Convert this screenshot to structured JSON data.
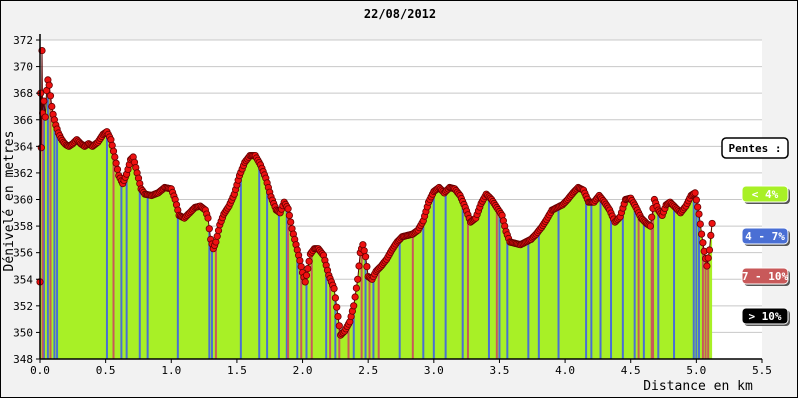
{
  "chart_data": {
    "type": "area",
    "title": "22/08/2012",
    "xlabel": "Distance en km",
    "ylabel": "Dénivelé en metres",
    "xlim": [
      0,
      5.5
    ],
    "ylim": [
      348,
      372
    ],
    "xticks": [
      "0.0",
      "0.5",
      "1.0",
      "1.5",
      "2.0",
      "2.5",
      "3.0",
      "3.5",
      "4.0",
      "4.5",
      "5.0",
      "5.5"
    ],
    "yticks": [
      "348",
      "350",
      "352",
      "354",
      "356",
      "358",
      "360",
      "362",
      "364",
      "366",
      "368",
      "370",
      "372"
    ],
    "grid": "horizontal",
    "series": [
      {
        "points": [
          [
            0.0,
            353.8
          ],
          [
            0.005,
            368.0
          ],
          [
            0.01,
            363.9
          ],
          [
            0.015,
            371.2
          ],
          [
            0.02,
            366.5
          ],
          [
            0.03,
            367.4
          ],
          [
            0.04,
            366.2
          ],
          [
            0.05,
            368.2
          ],
          [
            0.06,
            369.0
          ],
          [
            0.07,
            368.6
          ],
          [
            0.08,
            367.8
          ],
          [
            0.09,
            367.0
          ],
          [
            0.1,
            366.4
          ],
          [
            0.12,
            365.6
          ],
          [
            0.14,
            365.0
          ],
          [
            0.16,
            364.6
          ],
          [
            0.18,
            364.3
          ],
          [
            0.2,
            364.1
          ],
          [
            0.22,
            364.0
          ],
          [
            0.25,
            364.2
          ],
          [
            0.28,
            364.5
          ],
          [
            0.31,
            364.2
          ],
          [
            0.34,
            364.0
          ],
          [
            0.37,
            364.2
          ],
          [
            0.4,
            364.0
          ],
          [
            0.44,
            364.3
          ],
          [
            0.48,
            364.9
          ],
          [
            0.51,
            365.1
          ],
          [
            0.54,
            364.5
          ],
          [
            0.57,
            363.2
          ],
          [
            0.6,
            361.8
          ],
          [
            0.63,
            361.2
          ],
          [
            0.66,
            361.9
          ],
          [
            0.69,
            363.0
          ],
          [
            0.71,
            363.2
          ],
          [
            0.74,
            362.0
          ],
          [
            0.77,
            360.8
          ],
          [
            0.8,
            360.4
          ],
          [
            0.85,
            360.3
          ],
          [
            0.9,
            360.5
          ],
          [
            0.95,
            360.9
          ],
          [
            1.0,
            360.8
          ],
          [
            1.03,
            360.0
          ],
          [
            1.06,
            358.8
          ],
          [
            1.1,
            358.6
          ],
          [
            1.14,
            359.0
          ],
          [
            1.18,
            359.4
          ],
          [
            1.22,
            359.5
          ],
          [
            1.26,
            359.2
          ],
          [
            1.28,
            358.6
          ],
          [
            1.3,
            357.0
          ],
          [
            1.32,
            356.3
          ],
          [
            1.34,
            356.8
          ],
          [
            1.37,
            358.1
          ],
          [
            1.4,
            358.9
          ],
          [
            1.44,
            359.5
          ],
          [
            1.48,
            360.4
          ],
          [
            1.52,
            361.8
          ],
          [
            1.56,
            362.8
          ],
          [
            1.6,
            363.3
          ],
          [
            1.64,
            363.3
          ],
          [
            1.68,
            362.6
          ],
          [
            1.72,
            361.6
          ],
          [
            1.76,
            360.2
          ],
          [
            1.8,
            359.2
          ],
          [
            1.83,
            359.0
          ],
          [
            1.86,
            359.8
          ],
          [
            1.89,
            359.3
          ],
          [
            1.92,
            357.8
          ],
          [
            1.95,
            356.6
          ],
          [
            1.98,
            355.4
          ],
          [
            2.0,
            354.5
          ],
          [
            2.02,
            353.8
          ],
          [
            2.04,
            354.8
          ],
          [
            2.06,
            355.9
          ],
          [
            2.09,
            356.3
          ],
          [
            2.12,
            356.3
          ],
          [
            2.16,
            355.8
          ],
          [
            2.2,
            354.3
          ],
          [
            2.24,
            353.3
          ],
          [
            2.27,
            351.2
          ],
          [
            2.29,
            349.8
          ],
          [
            2.32,
            350.1
          ],
          [
            2.36,
            350.8
          ],
          [
            2.39,
            352.0
          ],
          [
            2.42,
            354.0
          ],
          [
            2.44,
            356.0
          ],
          [
            2.46,
            356.6
          ],
          [
            2.48,
            355.7
          ],
          [
            2.5,
            354.2
          ],
          [
            2.53,
            354.0
          ],
          [
            2.56,
            354.6
          ],
          [
            2.6,
            355.0
          ],
          [
            2.64,
            355.5
          ],
          [
            2.68,
            356.2
          ],
          [
            2.72,
            356.8
          ],
          [
            2.76,
            357.2
          ],
          [
            2.8,
            357.3
          ],
          [
            2.84,
            357.4
          ],
          [
            2.88,
            357.7
          ],
          [
            2.92,
            358.4
          ],
          [
            2.96,
            359.8
          ],
          [
            3.0,
            360.6
          ],
          [
            3.04,
            360.9
          ],
          [
            3.08,
            360.5
          ],
          [
            3.12,
            360.9
          ],
          [
            3.16,
            360.8
          ],
          [
            3.2,
            360.3
          ],
          [
            3.24,
            359.4
          ],
          [
            3.28,
            358.3
          ],
          [
            3.32,
            358.6
          ],
          [
            3.36,
            359.7
          ],
          [
            3.4,
            360.4
          ],
          [
            3.44,
            360.0
          ],
          [
            3.48,
            359.4
          ],
          [
            3.52,
            358.8
          ],
          [
            3.55,
            357.6
          ],
          [
            3.58,
            356.8
          ],
          [
            3.62,
            356.7
          ],
          [
            3.66,
            356.6
          ],
          [
            3.7,
            356.8
          ],
          [
            3.74,
            357.0
          ],
          [
            3.78,
            357.4
          ],
          [
            3.82,
            357.9
          ],
          [
            3.86,
            358.5
          ],
          [
            3.9,
            359.2
          ],
          [
            3.94,
            359.4
          ],
          [
            3.98,
            359.6
          ],
          [
            4.02,
            360.0
          ],
          [
            4.06,
            360.5
          ],
          [
            4.1,
            360.9
          ],
          [
            4.14,
            360.7
          ],
          [
            4.18,
            359.8
          ],
          [
            4.22,
            359.8
          ],
          [
            4.26,
            360.3
          ],
          [
            4.3,
            359.8
          ],
          [
            4.34,
            359.2
          ],
          [
            4.38,
            358.3
          ],
          [
            4.42,
            358.7
          ],
          [
            4.46,
            360.0
          ],
          [
            4.5,
            360.1
          ],
          [
            4.54,
            359.4
          ],
          [
            4.58,
            358.6
          ],
          [
            4.62,
            358.2
          ],
          [
            4.65,
            358.0
          ],
          [
            4.68,
            360.0
          ],
          [
            4.71,
            359.2
          ],
          [
            4.74,
            358.8
          ],
          [
            4.77,
            359.6
          ],
          [
            4.8,
            359.8
          ],
          [
            4.84,
            359.4
          ],
          [
            4.88,
            359.0
          ],
          [
            4.92,
            359.5
          ],
          [
            4.96,
            360.3
          ],
          [
            4.99,
            360.5
          ],
          [
            5.02,
            358.9
          ],
          [
            5.04,
            357.4
          ],
          [
            5.06,
            356.1
          ],
          [
            5.08,
            355.0
          ],
          [
            5.09,
            355.6
          ],
          [
            5.1,
            356.2
          ],
          [
            5.11,
            357.3
          ],
          [
            5.12,
            358.2
          ]
        ]
      }
    ],
    "slope_bars": {
      "blue": [
        0.03,
        0.06,
        0.11,
        0.13,
        0.51,
        0.62,
        0.66,
        0.76,
        0.82,
        1.05,
        1.29,
        1.31,
        1.53,
        1.67,
        1.73,
        1.82,
        1.88,
        1.96,
        2.03,
        2.18,
        2.25,
        2.39,
        2.48,
        2.54,
        2.74,
        2.92,
        3.0,
        3.09,
        3.22,
        3.42,
        3.5,
        3.56,
        3.72,
        3.8,
        3.95,
        4.16,
        4.2,
        4.27,
        4.35,
        4.44,
        4.53,
        4.6,
        4.71,
        4.83,
        4.98,
        5.0,
        5.02
      ],
      "red": [
        0.02,
        0.08,
        0.56,
        1.34,
        1.89,
        1.99,
        2.07,
        2.21,
        2.28,
        2.35,
        2.45,
        2.51,
        2.58,
        2.84,
        3.26,
        3.48,
        4.56,
        4.66,
        4.67,
        5.05,
        5.07,
        5.09
      ]
    },
    "colors": {
      "area": "#a8f026",
      "bar_blue": "#4a6fd4",
      "bar_red": "#c8595a",
      "marker": "#ee1111",
      "marker_edge": "#660000",
      "grid": "#c8c8c8"
    },
    "legend": {
      "title": "Pentes :",
      "placement": "right",
      "items": [
        {
          "label": "< 4%",
          "color": "#a8f026",
          "text_color": "#ffffff"
        },
        {
          "label": "4 - 7%",
          "color": "#4a6fd4",
          "text_color": "#ffffff"
        },
        {
          "label": "7 - 10%",
          "color": "#c8595a",
          "text_color": "#ffffff"
        },
        {
          "label": "> 10%",
          "color": "#000000",
          "text_color": "#ffffff"
        }
      ]
    }
  }
}
